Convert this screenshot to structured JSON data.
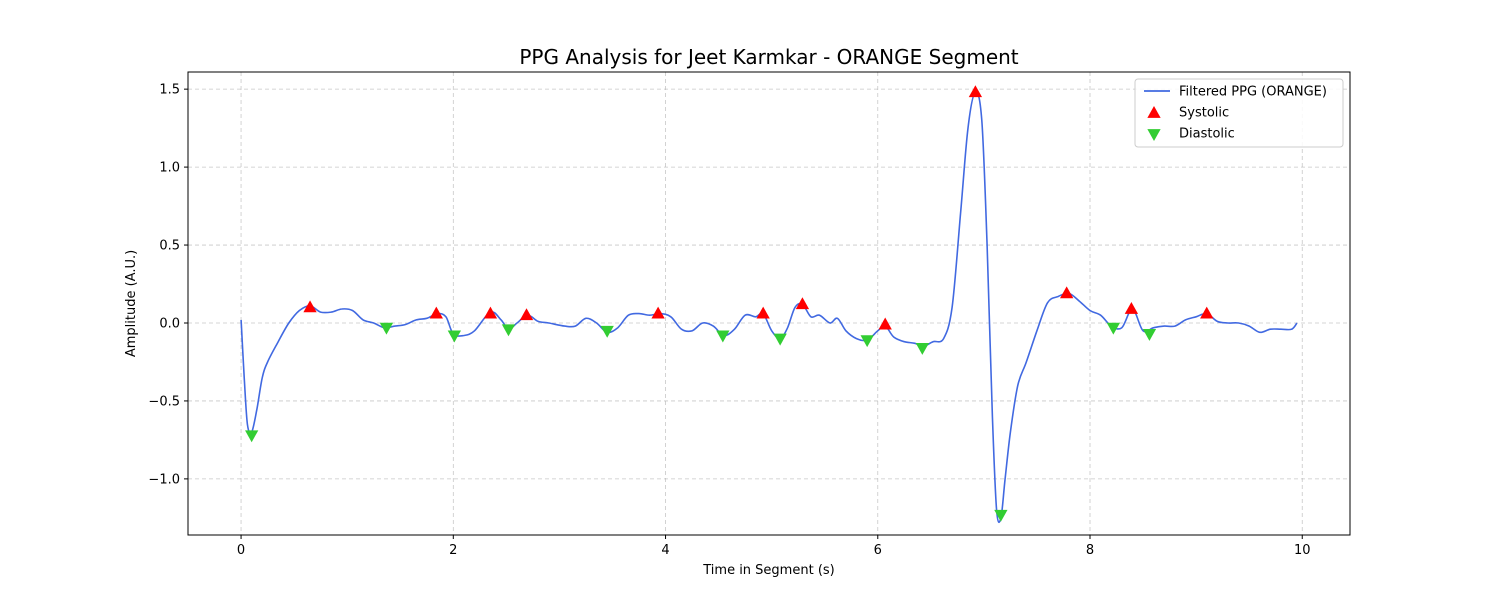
{
  "chart_data": {
    "type": "line",
    "title": "PPG Analysis for Jeet Karmkar - ORANGE Segment",
    "xlabel": "Time in Segment (s)",
    "ylabel": "Amplitude (A.U.)",
    "xlim": [
      -0.5,
      10.45
    ],
    "ylim": [
      -1.36,
      1.61
    ],
    "grid": true,
    "legend_position": "top-right",
    "x_ticks": [
      0,
      2,
      4,
      6,
      8,
      10
    ],
    "x_tick_labels": [
      "0",
      "2",
      "4",
      "6",
      "8",
      "10"
    ],
    "y_ticks": [
      -1.0,
      -0.5,
      0.0,
      0.5,
      1.0,
      1.5
    ],
    "y_tick_labels": [
      "−1.0",
      "−0.5",
      "0.0",
      "0.5",
      "1.0",
      "1.5"
    ],
    "series": [
      {
        "name": "Filtered PPG (ORANGE)",
        "kind": "line",
        "color": "#4169E1",
        "x": [
          0,
          0.03,
          0.06,
          0.1,
          0.15,
          0.2,
          0.25,
          0.35,
          0.45,
          0.55,
          0.65,
          0.75,
          0.85,
          0.95,
          1.05,
          1.15,
          1.25,
          1.35,
          1.45,
          1.55,
          1.65,
          1.75,
          1.85,
          1.93,
          2.0,
          2.1,
          2.2,
          2.35,
          2.45,
          2.52,
          2.6,
          2.7,
          2.8,
          2.9,
          3.05,
          3.15,
          3.25,
          3.35,
          3.45,
          3.55,
          3.65,
          3.75,
          3.85,
          3.95,
          4.05,
          4.15,
          4.25,
          4.35,
          4.45,
          4.55,
          4.65,
          4.75,
          4.85,
          4.92,
          5.0,
          5.08,
          5.15,
          5.22,
          5.29,
          5.37,
          5.45,
          5.55,
          5.62,
          5.7,
          5.8,
          5.9,
          6.0,
          6.07,
          6.15,
          6.25,
          6.35,
          6.43,
          6.52,
          6.62,
          6.7,
          6.78,
          6.85,
          6.92,
          6.98,
          7.03,
          7.08,
          7.12,
          7.16,
          7.2,
          7.25,
          7.32,
          7.4,
          7.5,
          7.6,
          7.7,
          7.8,
          7.9,
          8.0,
          8.1,
          8.2,
          8.3,
          8.4,
          8.5,
          8.6,
          8.7,
          8.8,
          8.9,
          9.0,
          9.1,
          9.2,
          9.3,
          9.4,
          9.5,
          9.6,
          9.7,
          9.8,
          9.9,
          9.95
        ],
        "y": [
          0.02,
          -0.35,
          -0.65,
          -0.7,
          -0.55,
          -0.35,
          -0.25,
          -0.12,
          0.0,
          0.08,
          0.11,
          0.07,
          0.07,
          0.09,
          0.08,
          0.02,
          0.0,
          -0.03,
          -0.02,
          -0.01,
          0.02,
          0.03,
          0.06,
          0.04,
          -0.07,
          -0.08,
          -0.05,
          0.07,
          0.02,
          -0.04,
          0.0,
          0.05,
          0.01,
          0.0,
          -0.02,
          -0.02,
          0.03,
          0.0,
          -0.06,
          -0.03,
          0.05,
          0.06,
          0.05,
          0.06,
          0.04,
          -0.04,
          -0.05,
          0.0,
          -0.02,
          -0.08,
          -0.04,
          0.05,
          0.04,
          0.06,
          -0.05,
          -0.1,
          -0.03,
          0.1,
          0.12,
          0.04,
          0.05,
          0.0,
          0.03,
          -0.05,
          -0.1,
          -0.11,
          -0.05,
          -0.02,
          -0.09,
          -0.12,
          -0.13,
          -0.15,
          -0.12,
          -0.1,
          0.1,
          0.7,
          1.25,
          1.48,
          1.3,
          0.5,
          -0.6,
          -1.2,
          -1.25,
          -1.0,
          -0.7,
          -0.4,
          -0.25,
          -0.05,
          0.13,
          0.17,
          0.19,
          0.14,
          0.08,
          0.05,
          -0.02,
          -0.03,
          0.09,
          -0.05,
          -0.03,
          -0.02,
          -0.02,
          0.02,
          0.04,
          0.06,
          0.01,
          0.0,
          0.0,
          -0.02,
          -0.06,
          -0.04,
          -0.04,
          -0.04,
          0.0
        ]
      },
      {
        "name": "Systolic",
        "kind": "markers",
        "marker": "triangle-up",
        "color": "#FF0000",
        "x": [
          0.65,
          1.84,
          2.35,
          2.69,
          3.93,
          4.92,
          5.29,
          6.07,
          6.92,
          7.78,
          8.39,
          9.1
        ],
        "y": [
          0.1,
          0.06,
          0.06,
          0.05,
          0.06,
          0.06,
          0.12,
          -0.01,
          1.48,
          0.19,
          0.09,
          0.06
        ]
      },
      {
        "name": "Diastolic",
        "kind": "markers",
        "marker": "triangle-down",
        "color": "#32CD32",
        "x": [
          0.1,
          1.37,
          2.01,
          2.52,
          3.45,
          4.54,
          5.08,
          5.9,
          6.42,
          7.16,
          8.22,
          8.56
        ],
        "y": [
          -0.72,
          -0.03,
          -0.08,
          -0.04,
          -0.05,
          -0.08,
          -0.1,
          -0.11,
          -0.16,
          -1.23,
          -0.03,
          -0.07
        ]
      }
    ]
  }
}
